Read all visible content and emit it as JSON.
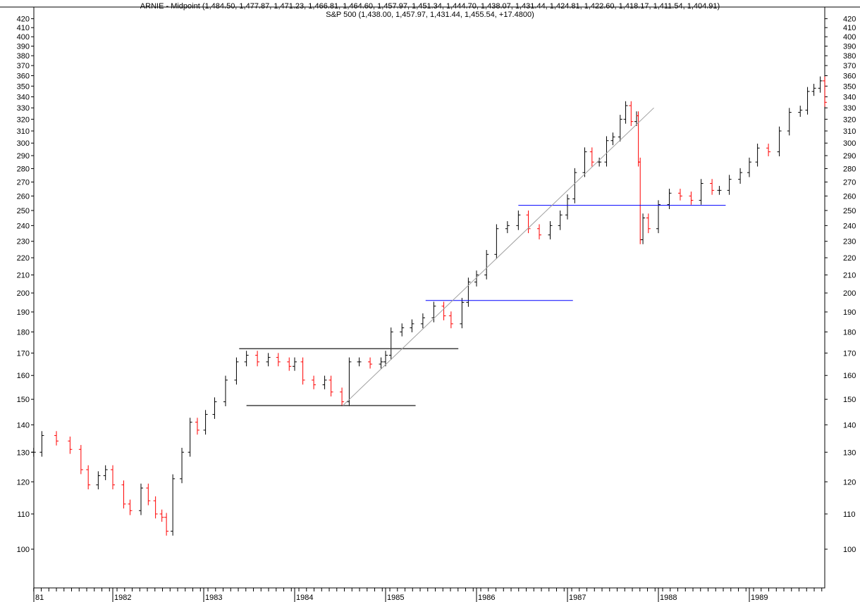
{
  "header": {
    "indicator_label": "ARNIE - Midpoint (1,484.50, 1,477.87, 1,471.23, 1,466.81, 1,464.60, 1,457.97, 1,451.34, 1,444.70, 1,438.07, 1,431.44, 1,424.81, 1,422.60, 1,418.17, 1,411.54, 1,404.91)",
    "series_label": "S&P 500 (1,438.00, 1,457.97, 1,431.44, 1,455.54, +17.4800)"
  },
  "chart_data": {
    "type": "line",
    "subtype": "ohlc-bars",
    "title": "S&P 500",
    "xlabel": "",
    "ylabel": "",
    "yscale": "log",
    "ylim": [
      95,
      425
    ],
    "xlim": [
      1981.13,
      1989.88
    ],
    "grid": false,
    "x_tick_labels": [
      "81",
      "1982",
      "1983",
      "1984",
      "1985",
      "1986",
      "1987",
      "1988",
      "1989"
    ],
    "y_ticks": [
      100,
      110,
      120,
      130,
      140,
      150,
      160,
      170,
      180,
      190,
      200,
      210,
      220,
      230,
      240,
      250,
      260,
      270,
      280,
      290,
      300,
      310,
      320,
      330,
      340,
      350,
      360,
      370,
      380,
      390,
      400,
      410,
      420
    ],
    "colors": {
      "up": "#000000",
      "down": "#ff0000",
      "support": "#404040",
      "resistance_blue": "#0000ff",
      "trendline": "#a0a0a0"
    },
    "series": [
      {
        "name": "S&P 500",
        "x": [
          1981.13,
          1981.22,
          1981.38,
          1981.53,
          1981.65,
          1981.73,
          1981.84,
          1981.92,
          1982.0,
          1982.12,
          1982.19,
          1982.31,
          1982.39,
          1982.47,
          1982.54,
          1982.59,
          1982.66,
          1982.76,
          1982.85,
          1982.93,
          1983.02,
          1983.12,
          1983.24,
          1983.36,
          1983.47,
          1983.59,
          1983.71,
          1983.82,
          1983.94,
          1984.0,
          1984.09,
          1984.21,
          1984.33,
          1984.4,
          1984.52,
          1984.6,
          1984.71,
          1984.83,
          1984.95,
          1985.0,
          1985.06,
          1985.18,
          1985.29,
          1985.41,
          1985.53,
          1985.64,
          1985.72,
          1985.84,
          1985.91,
          1986.0,
          1986.11,
          1986.22,
          1986.34,
          1986.46,
          1986.57,
          1986.69,
          1986.81,
          1986.92,
          1987.0,
          1987.08,
          1987.19,
          1987.27,
          1987.35,
          1987.43,
          1987.5,
          1987.58,
          1987.64,
          1987.7,
          1987.76,
          1987.78,
          1987.8,
          1987.83,
          1987.89,
          1988.0,
          1988.12,
          1988.24,
          1988.36,
          1988.47,
          1988.59,
          1988.67,
          1988.78,
          1988.9,
          1989.0,
          1989.09,
          1989.21,
          1989.33,
          1989.44,
          1989.56,
          1989.64,
          1989.71,
          1989.78,
          1989.83
        ],
        "values": [
          130,
          136,
          134,
          131,
          124,
          119,
          122,
          124,
          119,
          113,
          111,
          118,
          114,
          110,
          109,
          105,
          121,
          130,
          141,
          138,
          144,
          149,
          158,
          166,
          169,
          166,
          168,
          166,
          164,
          166,
          158,
          156,
          158,
          153,
          149,
          166,
          166,
          165,
          166,
          169,
          180,
          182,
          184,
          187,
          193,
          188,
          184,
          195,
          206,
          210,
          222,
          238,
          240,
          247,
          238,
          234,
          240,
          247,
          258,
          277,
          293,
          285,
          285,
          302,
          305,
          320,
          332,
          318,
          323,
          285,
          231,
          245,
          238,
          254,
          262,
          260,
          257,
          269,
          264,
          264,
          272,
          277,
          285,
          296,
          293,
          310,
          326,
          328,
          345,
          348,
          355,
          335
        ]
      }
    ],
    "annotations": [
      {
        "type": "hline",
        "value": 172,
        "from": 1983.39,
        "to": 1985.8,
        "color": "support"
      },
      {
        "type": "hline",
        "value": 147.5,
        "from": 1983.47,
        "to": 1985.33,
        "color": "support"
      },
      {
        "type": "hline",
        "value": 196,
        "from": 1985.44,
        "to": 1987.06,
        "color": "resistance_blue"
      },
      {
        "type": "hline",
        "value": 253.5,
        "from": 1986.46,
        "to": 1988.74,
        "color": "resistance_blue"
      },
      {
        "type": "trendline",
        "from": [
          1984.53,
          147.5
        ],
        "to": [
          1987.95,
          330
        ],
        "color": "trendline"
      }
    ]
  }
}
